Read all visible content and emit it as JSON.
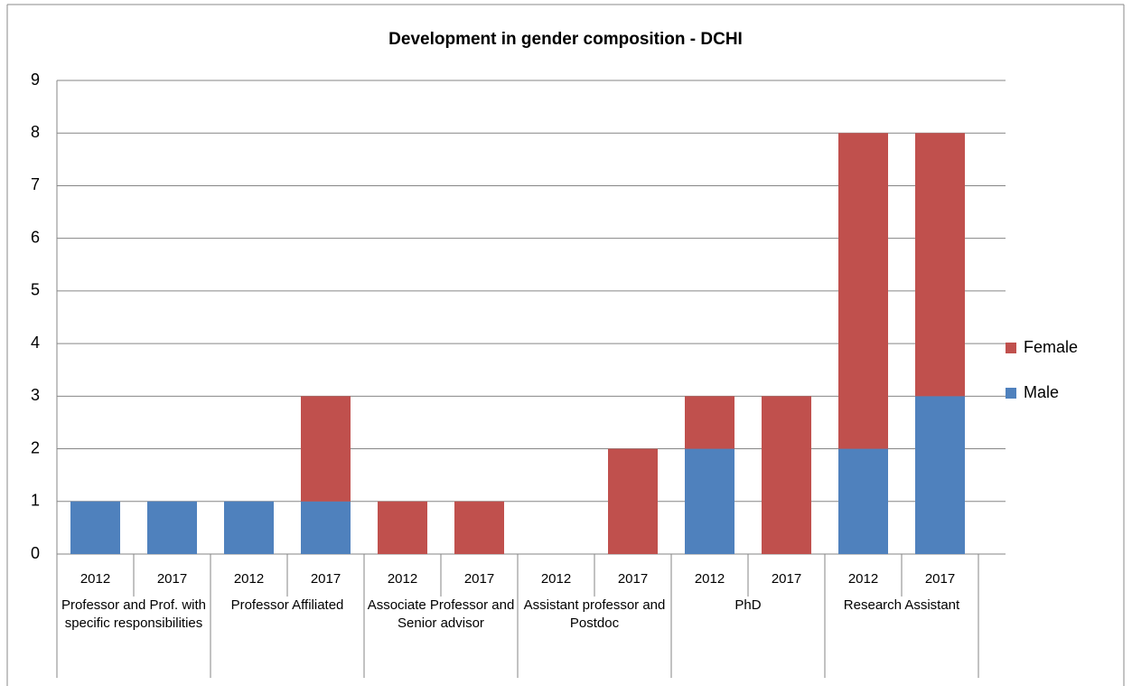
{
  "chart_data": {
    "type": "stacked_bar",
    "title": "Development in gender composition - DCHI",
    "categories": [
      "2012",
      "2017",
      "2012",
      "2017",
      "2012",
      "2017",
      "2012",
      "2017",
      "2012",
      "2017",
      "2012",
      "2017"
    ],
    "groups": [
      "Professor and Prof. with specific responsibilities",
      "Professor Affiliated",
      "Associate Professor and Senior advisor",
      "Assistant professor and Postdoc",
      "PhD",
      "Research Assistant"
    ],
    "series": [
      {
        "name": "Male",
        "color": "#4f81bd",
        "values": [
          1,
          1,
          1,
          1,
          0,
          0,
          0,
          0,
          2,
          0,
          2,
          3
        ]
      },
      {
        "name": "Female",
        "color": "#c0504d",
        "values": [
          0,
          0,
          0,
          2,
          1,
          1,
          0,
          2,
          1,
          3,
          6,
          5
        ]
      }
    ],
    "ylim": [
      0,
      9
    ],
    "yticks": [
      0,
      1,
      2,
      3,
      4,
      5,
      6,
      7,
      8,
      9
    ],
    "grid": true,
    "legend": "right"
  }
}
